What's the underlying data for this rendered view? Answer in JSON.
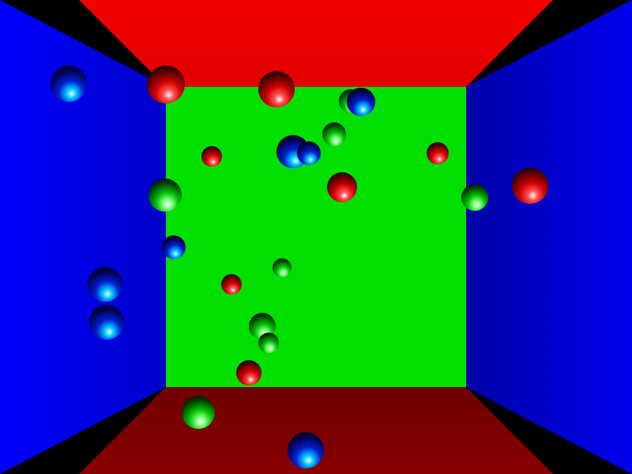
{
  "scene": {
    "colors": {
      "ceiling": "#f00000",
      "floor": "#780000",
      "left_wall": "#0000ff",
      "right_wall": "#0000e0",
      "back_wall": "#00e000"
    },
    "spheres": [
      {
        "color": "blue"
      },
      {
        "color": "red"
      },
      {
        "color": "red"
      },
      {
        "color": "green"
      },
      {
        "color": "blue"
      },
      {
        "color": "green"
      },
      {
        "color": "blue"
      },
      {
        "color": "blue"
      },
      {
        "color": "red"
      },
      {
        "color": "red"
      },
      {
        "color": "red"
      },
      {
        "color": "green"
      },
      {
        "color": "green"
      },
      {
        "color": "red"
      },
      {
        "color": "blue"
      },
      {
        "color": "green"
      },
      {
        "color": "red"
      },
      {
        "color": "blue"
      },
      {
        "color": "blue"
      },
      {
        "color": "green"
      },
      {
        "color": "green"
      },
      {
        "color": "red"
      },
      {
        "color": "green"
      },
      {
        "color": "blue"
      }
    ]
  }
}
